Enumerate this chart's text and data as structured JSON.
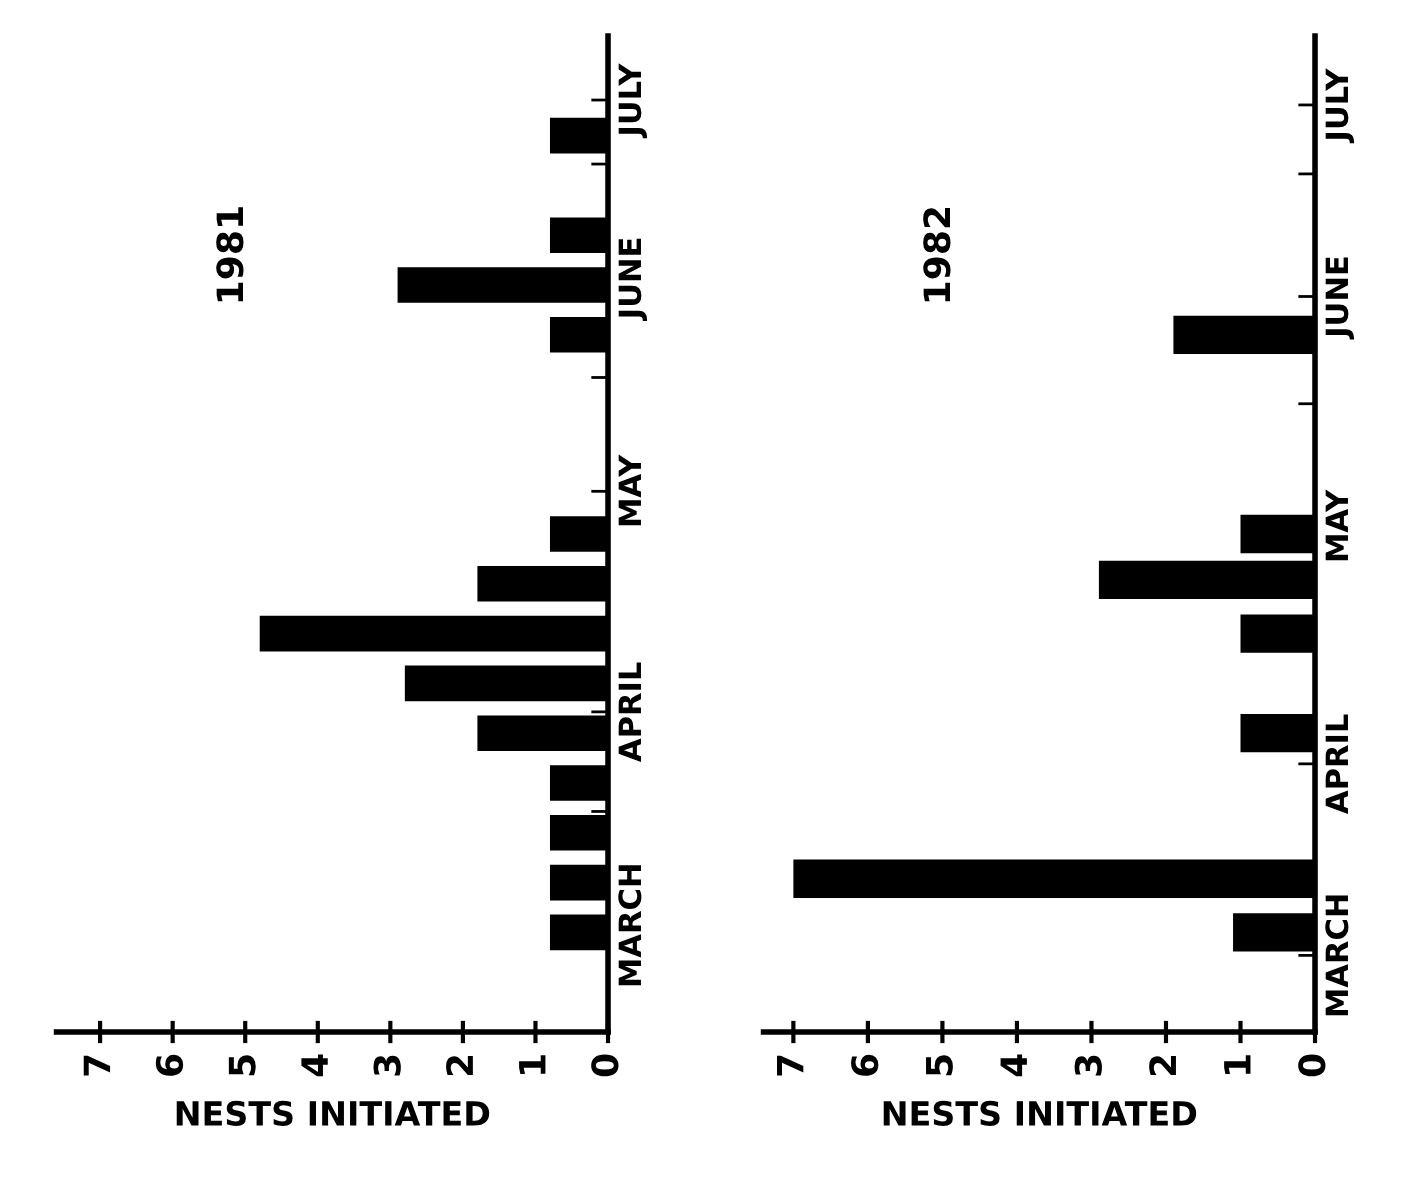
{
  "chart_data": [
    {
      "type": "bar",
      "orientation": "horizontal",
      "title": "1981",
      "xlabel": "NESTS INITIATED",
      "color": "#000000",
      "x": [
        "1981-03-15",
        "1981-03-22",
        "1981-03-29",
        "1981-04-05",
        "1981-04-12",
        "1981-04-19",
        "1981-04-26",
        "1981-05-03",
        "1981-05-10",
        "1981-06-07",
        "1981-06-14",
        "1981-06-21",
        "1981-07-05"
      ],
      "values": [
        0.8,
        0.8,
        0.8,
        0.8,
        1.8,
        2.8,
        4.8,
        1.8,
        0.8,
        0.8,
        2.9,
        0.8,
        0.8
      ],
      "xlim": [
        7.6,
        0
      ],
      "xticks": [
        0,
        1,
        2,
        3,
        4,
        5,
        6,
        7
      ],
      "ylim": [
        "1981-03-01",
        "1981-07-19"
      ],
      "yticks": [
        {
          "value": "1981-03-16",
          "label": "MARCH"
        },
        {
          "value": "1981-04-01",
          "label": null
        },
        {
          "value": "1981-04-15",
          "label": "APRIL"
        },
        {
          "value": "1981-05-01",
          "label": null
        },
        {
          "value": "1981-05-16",
          "label": "MAY"
        },
        {
          "value": "1981-06-01",
          "label": null
        },
        {
          "value": "1981-06-15",
          "label": "JUNE"
        },
        {
          "value": "1981-07-01",
          "label": null
        },
        {
          "value": "1981-07-10",
          "label": "JULY"
        }
      ]
    },
    {
      "type": "bar",
      "orientation": "horizontal",
      "title": "1982",
      "xlabel": "NESTS INITIATED",
      "color": "#000000",
      "x": [
        "1982-03-24",
        "1982-03-31",
        "1982-04-19",
        "1982-05-02",
        "1982-05-09",
        "1982-05-15",
        "1982-06-10"
      ],
      "values": [
        1.1,
        7.0,
        1.0,
        1.0,
        2.9,
        1.0,
        1.9
      ],
      "xlim": [
        7.4,
        0
      ],
      "xticks": [
        0,
        1,
        2,
        3,
        4,
        5,
        6,
        7
      ],
      "ylim": [
        "1982-03-11",
        "1982-07-19"
      ],
      "yticks": [
        {
          "value": "1982-03-21",
          "label": "MARCH"
        },
        {
          "value": "1982-04-01",
          "label": null
        },
        {
          "value": "1982-04-15",
          "label": "APRIL"
        },
        {
          "value": "1982-05-01",
          "label": null
        },
        {
          "value": "1982-05-16",
          "label": "MAY"
        },
        {
          "value": "1982-06-01",
          "label": null
        },
        {
          "value": "1982-06-15",
          "label": "JUNE"
        },
        {
          "value": "1982-07-01",
          "label": null
        },
        {
          "value": "1982-07-10",
          "label": "JULY"
        }
      ]
    }
  ]
}
